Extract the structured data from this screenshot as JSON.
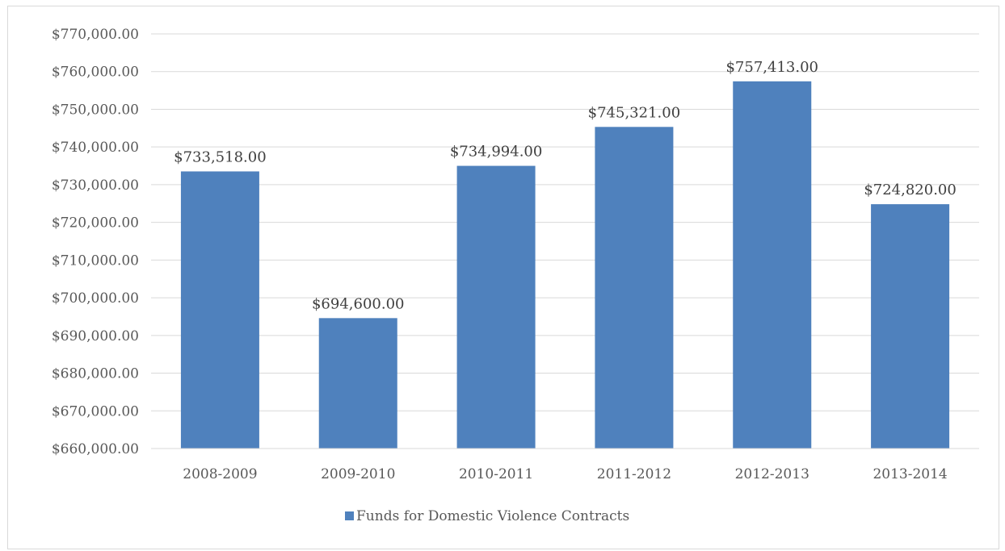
{
  "chart_data": {
    "type": "bar",
    "categories": [
      "2008-2009",
      "2009-2010",
      "2010-2011",
      "2011-2012",
      "2012-2013",
      "2013-2014"
    ],
    "series": [
      {
        "name": "Funds for Domestic Violence Contracts",
        "values": [
          733518,
          694600,
          734994,
          745321,
          757413,
          724820
        ],
        "data_labels": [
          "$733,518.00",
          "$694,600.00",
          "$734,994.00",
          "$745,321.00",
          "$757,413.00",
          "$724,820.00"
        ],
        "color": "#4f81bd"
      }
    ],
    "ylim": [
      660000,
      770000
    ],
    "yticks": [
      660000,
      670000,
      680000,
      690000,
      700000,
      710000,
      720000,
      730000,
      740000,
      750000,
      760000,
      770000
    ],
    "ytick_labels": [
      "$660,000.00",
      "$670,000.00",
      "$680,000.00",
      "$690,000.00",
      "$700,000.00",
      "$710,000.00",
      "$720,000.00",
      "$730,000.00",
      "$740,000.00",
      "$750,000.00",
      "$760,000.00",
      "$770,000.00"
    ],
    "grid": true,
    "gridline_color": "#d9d9d9",
    "legend_position": "bottom",
    "title": "",
    "xlabel": "",
    "ylabel": ""
  }
}
